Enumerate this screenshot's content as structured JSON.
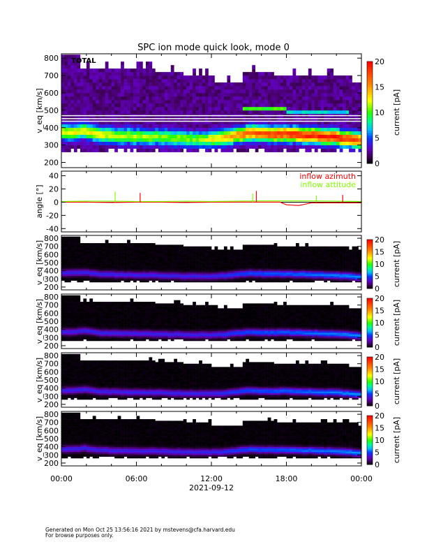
{
  "title": "SPC ion mode quick look, mode 0",
  "footer": {
    "line1": "Generated on Mon Oct 25 13:56:16 2021 by mstevens@cfa.harvard.edu",
    "line2": "For browse purposes only."
  },
  "chart_data": {
    "type": "heatmap",
    "x_axis": {
      "label": "2021-09-12",
      "range_hours": [
        0,
        24
      ],
      "ticks": [
        "00:00",
        "06:00",
        "12:00",
        "18:00",
        "00:00"
      ]
    },
    "colorbar": {
      "label": "current [pA]",
      "range": [
        0,
        20
      ],
      "ticks": [
        "0",
        "5",
        "10",
        "15",
        "20"
      ],
      "colormap": "rainbow (black-purple-blue-cyan-green-yellow-red)"
    },
    "panels": [
      {
        "label": "TOTAL",
        "ylabel": "v_eq [km/s]",
        "ylim": [
          170,
          825
        ],
        "yticks": [
          "200",
          "300",
          "400",
          "500",
          "600",
          "700",
          "800"
        ],
        "peak_current_pA": [
          [
            0,
            10
          ],
          [
            2,
            11
          ],
          [
            4,
            10
          ],
          [
            8,
            9
          ],
          [
            11,
            9
          ],
          [
            13,
            12
          ],
          [
            15,
            15
          ],
          [
            17,
            16
          ],
          [
            19,
            17
          ],
          [
            22,
            17
          ],
          [
            24,
            15
          ]
        ],
        "secondary_beam": [
          {
            "from_h": 14.5,
            "to_h": 18,
            "speed": 515,
            "current": 8
          },
          {
            "from_h": 18,
            "to_h": 23,
            "speed": 490,
            "current": 5
          }
        ]
      },
      {
        "label": "",
        "ylabel": "v_eq [km/s]",
        "ylim": [
          165,
          835
        ],
        "yticks": [
          "200",
          "300",
          "400",
          "500",
          "600",
          "700",
          "800"
        ],
        "peak_current_pA": [
          [
            0,
            4
          ],
          [
            12,
            4
          ],
          [
            15,
            5
          ],
          [
            24,
            6
          ]
        ]
      },
      {
        "label": "",
        "ylabel": "v_eq [km/s]",
        "ylim": [
          165,
          835
        ],
        "yticks": [
          "200",
          "300",
          "400",
          "500",
          "600",
          "700",
          "800"
        ],
        "peak_current_pA": [
          [
            0,
            4
          ],
          [
            12,
            4
          ],
          [
            15,
            5
          ],
          [
            24,
            6
          ]
        ]
      },
      {
        "label": "",
        "ylabel": "v_eq [km/s]",
        "ylim": [
          165,
          835
        ],
        "yticks": [
          "200",
          "300",
          "400",
          "500",
          "600",
          "700",
          "800"
        ],
        "peak_current_pA": [
          [
            0,
            4
          ],
          [
            12,
            4
          ],
          [
            15,
            5
          ],
          [
            24,
            6
          ]
        ]
      },
      {
        "label": "",
        "ylabel": "v_eq [km/s]",
        "ylim": [
          165,
          835
        ],
        "yticks": [
          "200",
          "300",
          "400",
          "500",
          "600",
          "700",
          "800"
        ],
        "peak_current_pA": [
          [
            0,
            4
          ],
          [
            12,
            4
          ],
          [
            15,
            5
          ],
          [
            24,
            6
          ]
        ]
      }
    ],
    "peak_speed_km_s": [
      [
        0,
        375
      ],
      [
        1,
        372
      ],
      [
        1.8,
        385
      ],
      [
        3,
        360
      ],
      [
        4,
        355
      ],
      [
        6,
        350
      ],
      [
        8,
        345
      ],
      [
        10,
        335
      ],
      [
        12,
        335
      ],
      [
        13,
        340
      ],
      [
        14,
        355
      ],
      [
        15,
        370
      ],
      [
        16,
        365
      ],
      [
        17,
        362
      ],
      [
        18,
        365
      ],
      [
        20,
        355
      ],
      [
        22,
        345
      ],
      [
        23.5,
        330
      ],
      [
        24,
        320
      ]
    ],
    "upper_cutoff_km_s": [
      [
        0,
        810
      ],
      [
        1.5,
        740
      ],
      [
        7.5,
        715
      ],
      [
        9.8,
        690
      ],
      [
        12,
        655
      ],
      [
        14.5,
        720
      ],
      [
        17,
        690
      ],
      [
        23,
        650
      ],
      [
        24,
        650
      ]
    ],
    "angle_panel": {
      "ylabel": "angle [°]",
      "ylim": [
        -45,
        47
      ],
      "yticks": [
        "-40",
        "-20",
        "0",
        "20",
        "40"
      ],
      "series": [
        {
          "name": "inflow azimuth",
          "color": "#ff0000",
          "x_hours": [
            0,
            2,
            4,
            6,
            8,
            10,
            12,
            14,
            16,
            17.5,
            18,
            19,
            19.5,
            20,
            22,
            24
          ],
          "values": [
            0,
            0,
            -0.5,
            0,
            0,
            -0.5,
            0,
            0,
            0,
            0,
            -4,
            -5,
            -3,
            -1,
            -1,
            -1
          ]
        },
        {
          "name": "inflow attitude",
          "color": "#80ff00",
          "x_hours": [
            0,
            2,
            4,
            6,
            8,
            10,
            12,
            14,
            16,
            18,
            20,
            22,
            24
          ],
          "values": [
            1,
            1.5,
            1.5,
            1,
            1,
            1.5,
            1,
            1.5,
            2,
            2,
            2,
            1.5,
            1
          ]
        }
      ],
      "spikes": [
        {
          "series": "inflow attitude",
          "x_hours": 4.3,
          "value": 16
        },
        {
          "series": "inflow azimuth",
          "x_hours": 6.3,
          "value": 14
        },
        {
          "series": "inflow attitude",
          "x_hours": 15.3,
          "value": 13
        },
        {
          "series": "inflow azimuth",
          "x_hours": 15.6,
          "value": 17
        },
        {
          "series": "inflow attitude",
          "x_hours": 20.4,
          "value": 10
        },
        {
          "series": "inflow azimuth",
          "x_hours": 22.5,
          "value": 11
        }
      ]
    }
  }
}
